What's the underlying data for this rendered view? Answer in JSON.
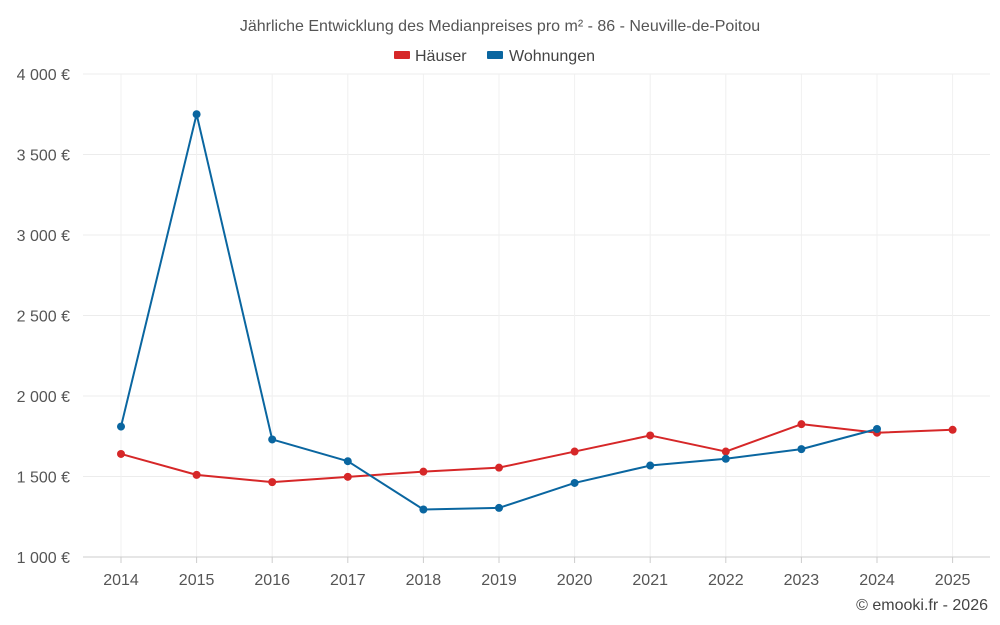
{
  "chart_data": {
    "type": "line",
    "title": "Jährliche Entwicklung des Medianpreises pro m² - 86 - Neuville-de-Poitou",
    "x": [
      "2014",
      "2015",
      "2016",
      "2017",
      "2018",
      "2019",
      "2020",
      "2021",
      "2022",
      "2023",
      "2024",
      "2025"
    ],
    "series": [
      {
        "name": "Häuser",
        "color": "#d62728",
        "values": [
          1640,
          1510,
          1465,
          1498,
          1530,
          1555,
          1655,
          1755,
          1655,
          1825,
          1772,
          1790
        ]
      },
      {
        "name": "Wohnungen",
        "color": "#0a66a0",
        "values": [
          1810,
          3750,
          1730,
          1595,
          1295,
          1305,
          1460,
          1568,
          1610,
          1670,
          1795,
          null
        ]
      }
    ],
    "yticks": [
      1000,
      1500,
      2000,
      2500,
      3000,
      3500,
      4000
    ],
    "ytick_labels": [
      "1 000 €",
      "1 500 €",
      "2 000 €",
      "2 500 €",
      "3 000 €",
      "3 500 €",
      "4 000 €"
    ],
    "ylim": [
      1000,
      4000
    ],
    "xlabel": "",
    "ylabel": "",
    "grid": true,
    "legend_position": "top-center"
  },
  "credit": "© emooki.fr - 2026"
}
